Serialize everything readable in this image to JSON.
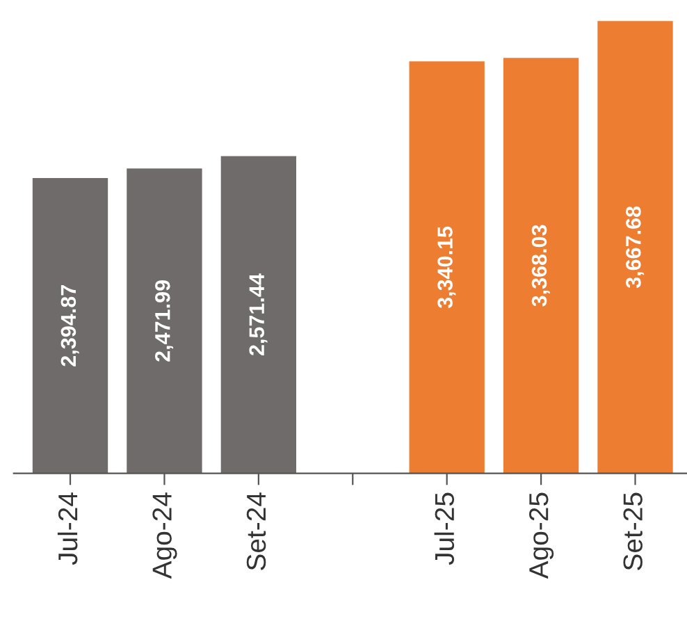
{
  "chart_data": {
    "type": "bar",
    "categories": [
      "Jul-24",
      "Ago-24",
      "Set-24",
      null,
      "Jul-25",
      "Ago-25",
      "Set-25"
    ],
    "values": [
      2394.87,
      2471.99,
      2571.44,
      null,
      3340.15,
      3368.03,
      3667.68
    ],
    "colors": [
      "#6e6b6a",
      "#6e6b6a",
      "#6e6b6a",
      null,
      "#ed7d31",
      "#ed7d31",
      "#ed7d31"
    ],
    "value_labels": [
      "2,394.87",
      "2,471.99",
      "2,571.44",
      null,
      "3,340.15",
      "3,368.03",
      "3,667.68"
    ],
    "grid": false,
    "legend": false
  }
}
